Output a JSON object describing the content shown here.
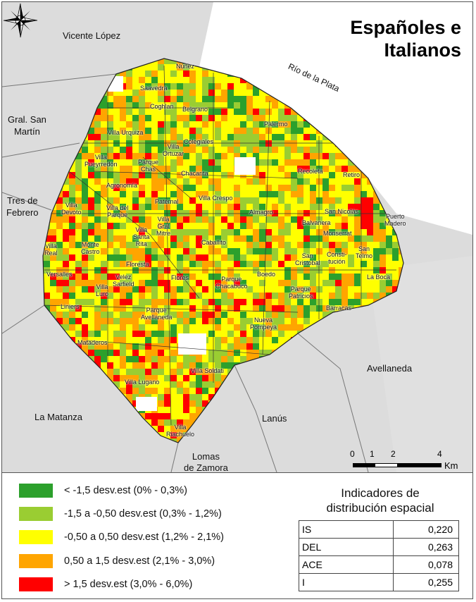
{
  "title_line1": "Españoles e",
  "title_line2": "Italianos",
  "river_label": "Río de la Plata",
  "regions": [
    {
      "id": "vicente-lopez",
      "label": "Vicente López"
    },
    {
      "id": "gral-san-martin",
      "label": "Gral. San\nMartín"
    },
    {
      "id": "tres-de-febrero",
      "label": "Tres de\nFebrero"
    },
    {
      "id": "la-matanza",
      "label": "La Matanza"
    },
    {
      "id": "lanus",
      "label": "Lanús"
    },
    {
      "id": "lomas-de-zamora",
      "label": "Lomas\nde Zamora"
    },
    {
      "id": "avellaneda",
      "label": "Avellaneda"
    }
  ],
  "neighborhoods": [
    "Núñez",
    "Saavedra",
    "Coghlan",
    "Belgrano",
    "Villa Urquiza",
    "Palermo",
    "Colegiales",
    "Villa\nOrtuzar",
    "Villa\nPueyrredón",
    "Parque\nChas",
    "Chacarita",
    "Recoleta",
    "Retiro",
    "Agronomía",
    "Villa\nDevoto",
    "Paternal",
    "Villa Crespo",
    "Villa del\nParque",
    "Villa\nGral\nMitre",
    "Almagro",
    "San Nicolás",
    "Puerto\nMadero",
    "Balvanera",
    "Monserrat",
    "Villa\nReal",
    "Monte\nCastro",
    "Villa\nSanta\nRita",
    "Caballito",
    "San\nCristobal",
    "Consti-\ntución",
    "San\nTelmo",
    "Versalles",
    "Floresta",
    "Velez\nSarfield",
    "Flores",
    "Boedo",
    "La Boca",
    "Villa\nLuro",
    "Parque\nChacabuco",
    "Parque\nPatricios",
    "Liniers",
    "Parque\nAvellaneda",
    "Barracas",
    "Nueva\nPompeya",
    "Mataderos",
    "Villa Soldati",
    "Villa Lugano",
    "Villa\nRiachuelo"
  ],
  "scale": {
    "ticks": [
      "0",
      "1",
      "2",
      "4"
    ],
    "unit": "Km"
  },
  "compass_icon": "north-arrow-compass-rose",
  "legend": [
    {
      "color": "#2ca02c",
      "label": "< -1,5 desv.est (0% - 0,3%)"
    },
    {
      "color": "#9acd32",
      "label": "-1,5 a -0,50 desv.est (0,3% - 1,2%)"
    },
    {
      "color": "#ffff00",
      "label": "-0,50 a 0,50 desv.est (1,2% - 2,1%)"
    },
    {
      "color": "#ffa500",
      "label": "0,50 a 1,5 desv.est (2,1% - 3,0%)"
    },
    {
      "color": "#ff0000",
      "label": "> 1,5 desv.est (3,0% - 6,0%)"
    }
  ],
  "indicators": {
    "title": "Indicadores de\ndistribución espacial",
    "rows": [
      {
        "name": "IS",
        "value": "0,220"
      },
      {
        "name": "DEL",
        "value": "0,263"
      },
      {
        "name": "ACE",
        "value": "0,078"
      },
      {
        "name": "I",
        "value": "0,255"
      }
    ]
  }
}
